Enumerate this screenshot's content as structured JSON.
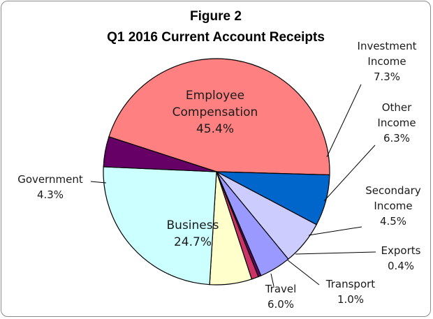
{
  "chart_data": {
    "type": "pie",
    "title_line1": "Figure 2",
    "title_line2": "Q1 2016 Current Account Receipts",
    "slices": [
      {
        "label_lines": [
          "Employee",
          "Compensation"
        ],
        "value": 45.4,
        "value_label": "45.4%",
        "color": "#ff8080"
      },
      {
        "label_lines": [
          "Investment",
          "Income"
        ],
        "value": 7.3,
        "value_label": "7.3%",
        "color": "#0066cc"
      },
      {
        "label_lines": [
          "Other",
          "Income"
        ],
        "value": 6.3,
        "value_label": "6.3%",
        "color": "#ccccff"
      },
      {
        "label_lines": [
          "Secondary",
          "Income"
        ],
        "value": 4.5,
        "value_label": "4.5%",
        "color": "#9999ff"
      },
      {
        "label_lines": [
          "Exports"
        ],
        "value": 0.4,
        "value_label": "0.4%",
        "color": "#660066"
      },
      {
        "label_lines": [
          "Transport"
        ],
        "value": 1.0,
        "value_label": "1.0%",
        "color": "#cc3366"
      },
      {
        "label_lines": [
          "Travel"
        ],
        "value": 6.0,
        "value_label": "6.0%",
        "color": "#ffffcc"
      },
      {
        "label_lines": [
          "Business"
        ],
        "value": 24.7,
        "value_label": "24.7%",
        "color": "#ccffff"
      },
      {
        "label_lines": [
          "Government"
        ],
        "value": 4.3,
        "value_label": "4.3%",
        "color": "#660066"
      }
    ]
  }
}
